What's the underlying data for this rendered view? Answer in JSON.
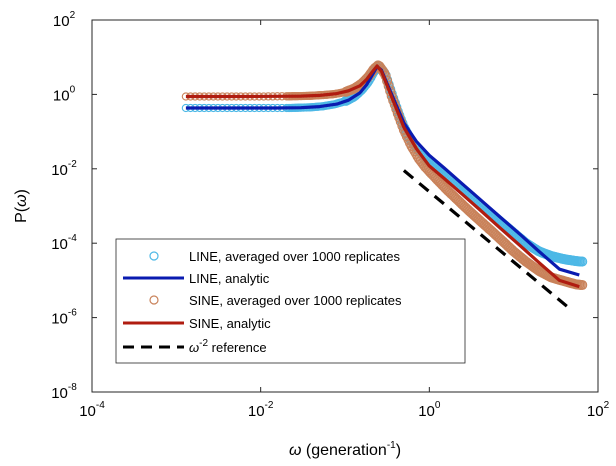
{
  "chart_data": {
    "type": "line",
    "title": "",
    "xlabel": {
      "greek": "ω",
      "text": " (generation",
      "exp": "-1",
      "close": ")"
    },
    "ylabel": {
      "text": "P(",
      "greek": "ω",
      "close": ")"
    },
    "x_scale": "log",
    "y_scale": "log",
    "xlim": [
      0.0001,
      100
    ],
    "ylim": [
      1e-08,
      100
    ],
    "xticks": [
      {
        "base": "10",
        "exp": "-4",
        "value": 0.0001
      },
      {
        "base": "10",
        "exp": "-2",
        "value": 0.01
      },
      {
        "base": "10",
        "exp": "0",
        "value": 1
      },
      {
        "base": "10",
        "exp": "2",
        "value": 100
      }
    ],
    "yticks": [
      {
        "base": "10",
        "exp": "2",
        "value": 100
      },
      {
        "base": "10",
        "exp": "0",
        "value": 1
      },
      {
        "base": "10",
        "exp": "-2",
        "value": 0.01
      },
      {
        "base": "10",
        "exp": "-4",
        "value": 0.0001
      },
      {
        "base": "10",
        "exp": "-6",
        "value": 1e-06
      },
      {
        "base": "10",
        "exp": "-8",
        "value": 1e-08
      }
    ],
    "grid": false,
    "legend_position": "bottom-left",
    "series": [
      {
        "name": "LINE, averaged over 1000 replicates",
        "style": "markers",
        "color": "#4db8e6",
        "x": [
          0.0013,
          0.002,
          0.003,
          0.0045,
          0.0065,
          0.009,
          0.012,
          0.016,
          0.022,
          0.03,
          0.04,
          0.055,
          0.075,
          0.1,
          0.13,
          0.16,
          0.19,
          0.22,
          0.25,
          0.3,
          0.35,
          0.42,
          0.5,
          0.6,
          0.75,
          0.9,
          1.2,
          1.6,
          2.2,
          3,
          4,
          5.5,
          7.5,
          10,
          14,
          20,
          28,
          40,
          55,
          65
        ],
        "y": [
          0.43,
          0.43,
          0.43,
          0.43,
          0.43,
          0.43,
          0.43,
          0.43,
          0.43,
          0.44,
          0.45,
          0.48,
          0.54,
          0.65,
          0.9,
          1.4,
          2.3,
          4.2,
          6.0,
          3.5,
          1.2,
          0.36,
          0.13,
          0.06,
          0.031,
          0.02,
          0.0115,
          0.0068,
          0.0036,
          0.002,
          0.0011,
          0.0006,
          0.00033,
          0.00019,
          0.0001,
          6e-05,
          4.5e-05,
          3.7e-05,
          3.3e-05,
          3.2e-05
        ]
      },
      {
        "name": "LINE, analytic",
        "style": "line",
        "color": "#0a1bb0",
        "x": [
          0.0013,
          0.003,
          0.007,
          0.015,
          0.03,
          0.05,
          0.08,
          0.11,
          0.15,
          0.18,
          0.21,
          0.24,
          0.27,
          0.32,
          0.4,
          0.5,
          0.7,
          1.0,
          1.5,
          2.5,
          4,
          7,
          12,
          20,
          35,
          60
        ],
        "y": [
          0.43,
          0.43,
          0.43,
          0.43,
          0.44,
          0.47,
          0.55,
          0.7,
          1.1,
          1.8,
          3.3,
          5.6,
          4.5,
          1.8,
          0.55,
          0.17,
          0.055,
          0.023,
          0.0105,
          0.0038,
          0.0015,
          0.00049,
          0.00017,
          6e-05,
          2e-05,
          1.4e-05
        ]
      },
      {
        "name": "SINE, averaged over 1000 replicates",
        "style": "markers",
        "color": "#c9825a",
        "x": [
          0.0013,
          0.002,
          0.003,
          0.0045,
          0.0065,
          0.009,
          0.012,
          0.016,
          0.022,
          0.03,
          0.04,
          0.055,
          0.075,
          0.1,
          0.13,
          0.16,
          0.19,
          0.22,
          0.25,
          0.3,
          0.35,
          0.42,
          0.5,
          0.6,
          0.75,
          0.9,
          1.2,
          1.6,
          2.2,
          3,
          4,
          5.5,
          7.5,
          10,
          14,
          20,
          28,
          40,
          55,
          65
        ],
        "y": [
          0.88,
          0.88,
          0.88,
          0.88,
          0.88,
          0.88,
          0.88,
          0.89,
          0.89,
          0.9,
          0.92,
          0.96,
          1.02,
          1.15,
          1.45,
          2.0,
          3.0,
          4.8,
          6.2,
          3.4,
          1.05,
          0.32,
          0.11,
          0.045,
          0.019,
          0.011,
          0.0055,
          0.0028,
          0.0014,
          0.00072,
          0.0004,
          0.00021,
          0.00011,
          6e-05,
          3.2e-05,
          1.8e-05,
          1.2e-05,
          9.5e-06,
          7.8e-06,
          7.5e-06
        ]
      },
      {
        "name": "SINE, analytic",
        "style": "line",
        "color": "#b01c10",
        "x": [
          0.0013,
          0.003,
          0.007,
          0.015,
          0.03,
          0.05,
          0.08,
          0.11,
          0.15,
          0.18,
          0.21,
          0.24,
          0.27,
          0.32,
          0.4,
          0.5,
          0.7,
          1.0,
          1.5,
          2.5,
          4,
          7,
          12,
          20,
          35,
          60
        ],
        "y": [
          0.88,
          0.88,
          0.88,
          0.89,
          0.9,
          0.94,
          1.05,
          1.25,
          1.7,
          2.5,
          4.0,
          5.8,
          4.2,
          1.6,
          0.45,
          0.13,
          0.035,
          0.012,
          0.0055,
          0.002,
          0.00078,
          0.00025,
          8.5e-05,
          3e-05,
          1e-05,
          6.8e-06
        ]
      },
      {
        "name": "ω-2 reference",
        "label_parts": {
          "greek": "ω",
          "exp": "-2",
          "text": " reference"
        },
        "style": "dashed",
        "color": "#000000",
        "x": [
          0.5,
          50
        ],
        "y": [
          0.009,
          1.5e-06
        ]
      }
    ]
  }
}
